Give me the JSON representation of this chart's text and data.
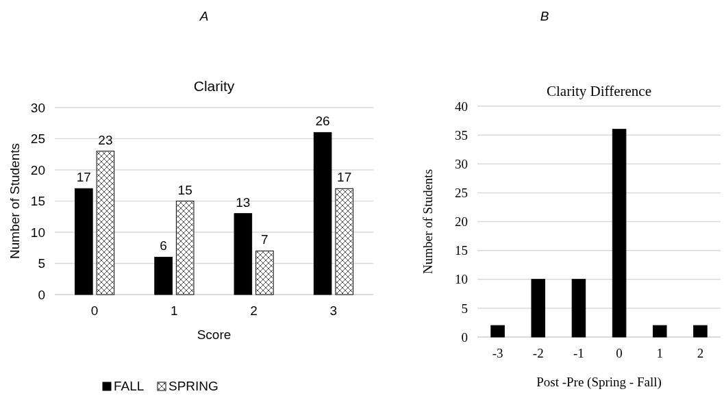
{
  "chart_data": [
    {
      "type": "bar",
      "title": "Clarity",
      "xlabel": "Score",
      "ylabel": "Number of Students",
      "annotations": [
        "A"
      ],
      "categories": [
        "0",
        "1",
        "2",
        "3"
      ],
      "series": [
        {
          "name": "FALL",
          "color": "#000000",
          "values": [
            17,
            6,
            13,
            26
          ]
        },
        {
          "name": "SPRING",
          "color": "#ffffff",
          "values": [
            23,
            15,
            7,
            17
          ]
        }
      ],
      "ylim": [
        0,
        30
      ],
      "yticks": [
        0,
        5,
        10,
        15,
        20,
        25,
        30
      ],
      "grid": "y",
      "legend": "bottom",
      "data_labels": true
    },
    {
      "type": "bar",
      "title": "Clarity Difference",
      "xlabel": "Post -Pre (Spring - Fall)",
      "ylabel": "Number of Students",
      "annotations": [
        "B"
      ],
      "categories": [
        "-3",
        "-2",
        "-1",
        "0",
        "1",
        "2"
      ],
      "series": [
        {
          "color": "#000000",
          "values": [
            2,
            10,
            10,
            36,
            2,
            2
          ]
        }
      ],
      "ylim": [
        0,
        40
      ],
      "yticks": [
        0,
        5,
        10,
        15,
        20,
        25,
        30,
        35,
        40
      ],
      "grid": "y"
    }
  ]
}
